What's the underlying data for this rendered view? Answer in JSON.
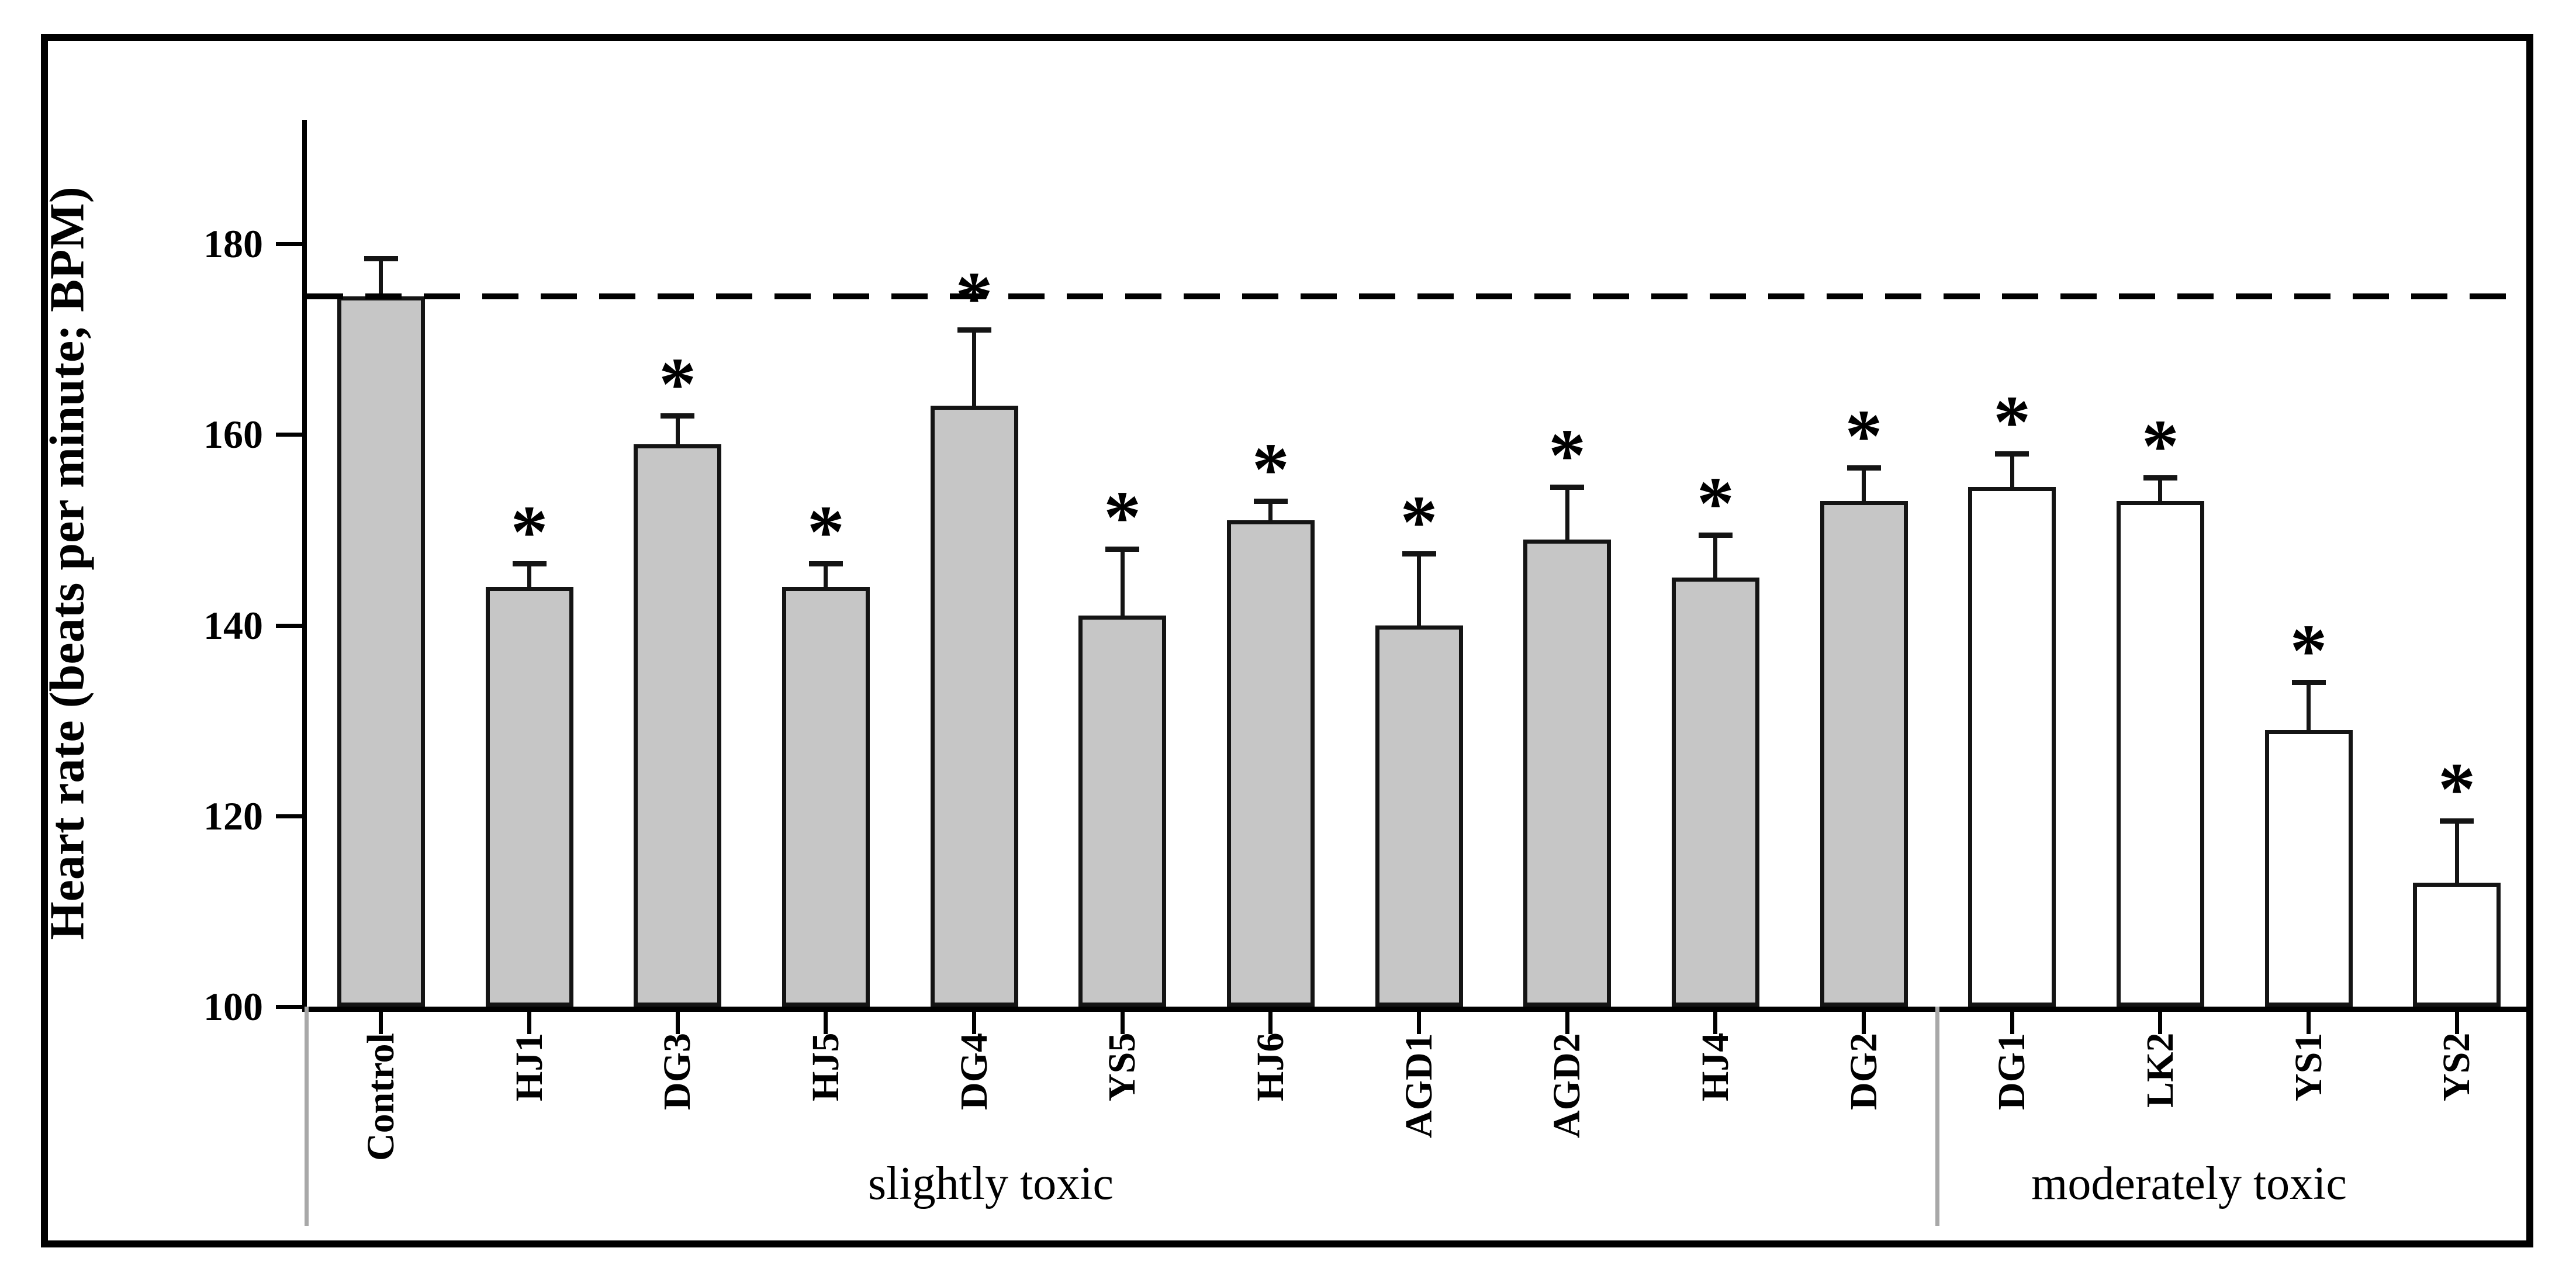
{
  "chart_data": {
    "type": "bar",
    "title": "",
    "ylabel": "Heart rate (beats per minute; BPM)",
    "xlabel": "",
    "categories": [
      "Control",
      "HJ1",
      "DG3",
      "HJ5",
      "DG4",
      "YS5",
      "HJ6",
      "AGD1",
      "AGD2",
      "HJ4",
      "DG2",
      "DG1",
      "LK2",
      "YS1",
      "YS2"
    ],
    "values": [
      174.5,
      144,
      159,
      144,
      163,
      141,
      151,
      140,
      149,
      145,
      153,
      154.5,
      153,
      129,
      113
    ],
    "errors_upper": [
      4,
      2.5,
      3,
      2.5,
      8,
      7,
      2,
      7.5,
      5.5,
      4.5,
      3.5,
      3.5,
      2.5,
      5,
      6.5
    ],
    "significance_marker": "*",
    "significant": [
      false,
      true,
      true,
      true,
      true,
      true,
      true,
      true,
      true,
      true,
      true,
      true,
      true,
      true,
      true
    ],
    "bar_fill": [
      "gray",
      "gray",
      "gray",
      "gray",
      "gray",
      "gray",
      "gray",
      "gray",
      "gray",
      "gray",
      "gray",
      "white",
      "white",
      "white",
      "white"
    ],
    "yticks": [
      100,
      120,
      140,
      160,
      180
    ],
    "ylim": [
      100,
      193
    ],
    "grid": false,
    "legend": "none",
    "reference_line": {
      "value": 174.5,
      "style": "dashed"
    },
    "group_annotations": [
      {
        "label": "slightly toxic",
        "from": "Control",
        "to": "DG2"
      },
      {
        "label": "moderately toxic",
        "from": "DG1",
        "to": "YS2"
      }
    ]
  },
  "colors": {
    "bar_gray_fill": "#c6c6c6",
    "bar_white_fill": "#ffffff",
    "line_black": "#141414",
    "separator_gray": "#a8a8a8",
    "background": "#ffffff"
  }
}
